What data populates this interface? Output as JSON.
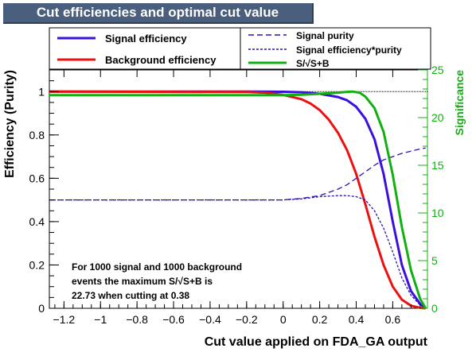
{
  "title": "Cut efficiencies and optimal cut value",
  "chart_data": {
    "type": "line",
    "xlabel": "Cut value applied on FDA_GA output",
    "ylabel": "Efficiency (Purity)",
    "y2label": "Significance",
    "xlim": [
      -1.28,
      0.79
    ],
    "ylim": [
      0,
      1.1
    ],
    "y2lim": [
      0,
      25
    ],
    "x_ticks": [
      -1.2,
      -1,
      -0.8,
      -0.6,
      -0.4,
      -0.2,
      0,
      0.2,
      0.4,
      0.6
    ],
    "x_tick_labels": [
      "−1.2",
      "−1",
      "−0.8",
      "−0.6",
      "−0.4",
      "−0.2",
      "0",
      "0.2",
      "0.4",
      "0.6"
    ],
    "y_ticks": [
      0,
      0.2,
      0.4,
      0.6,
      0.8,
      1
    ],
    "y_tick_labels": [
      "0",
      "0.2",
      "0.4",
      "0.6",
      "0.8",
      "1"
    ],
    "y2_ticks": [
      0,
      5,
      10,
      15,
      20,
      25
    ],
    "y2_tick_labels": [
      "0",
      "5",
      "10",
      "15",
      "20",
      "25"
    ],
    "reference_line_y": 1.0,
    "legend_placement": "top",
    "series": [
      {
        "name": "Signal efficiency",
        "color": "#3a10e0",
        "style": "solid",
        "axis": "left",
        "x": [
          -1.28,
          -0.2,
          0.0,
          0.1,
          0.2,
          0.3,
          0.35,
          0.4,
          0.45,
          0.5,
          0.55,
          0.6,
          0.65,
          0.7,
          0.75,
          0.78
        ],
        "y": [
          1.0,
          1.0,
          0.999,
          0.997,
          0.99,
          0.975,
          0.96,
          0.93,
          0.875,
          0.78,
          0.62,
          0.4,
          0.2,
          0.08,
          0.02,
          0.0
        ]
      },
      {
        "name": "Background efficiency",
        "color": "#ee1010",
        "style": "solid",
        "axis": "left",
        "x": [
          -1.28,
          -0.2,
          -0.1,
          0.0,
          0.1,
          0.15,
          0.2,
          0.25,
          0.3,
          0.35,
          0.4,
          0.45,
          0.5,
          0.55,
          0.6,
          0.65,
          0.7,
          0.75,
          0.78
        ],
        "y": [
          1.0,
          0.998,
          0.995,
          0.985,
          0.965,
          0.945,
          0.915,
          0.87,
          0.81,
          0.73,
          0.62,
          0.48,
          0.33,
          0.2,
          0.1,
          0.04,
          0.012,
          0.002,
          0.0
        ]
      },
      {
        "name": "Signal purity",
        "color": "#2a10b8",
        "style": "dashed",
        "axis": "left",
        "x": [
          -1.28,
          0.0,
          0.1,
          0.2,
          0.25,
          0.3,
          0.35,
          0.4,
          0.45,
          0.5,
          0.55,
          0.6,
          0.65,
          0.7,
          0.75,
          0.78
        ],
        "y": [
          0.5,
          0.5,
          0.507,
          0.52,
          0.535,
          0.55,
          0.57,
          0.6,
          0.63,
          0.66,
          0.685,
          0.7,
          0.715,
          0.725,
          0.735,
          0.74
        ]
      },
      {
        "name": "Signal efficiency*purity",
        "color": "#2a10b8",
        "style": "dotted",
        "axis": "left",
        "x": [
          -1.28,
          0.0,
          0.1,
          0.2,
          0.3,
          0.35,
          0.4,
          0.45,
          0.5,
          0.55,
          0.6,
          0.65,
          0.7,
          0.75,
          0.78
        ],
        "y": [
          0.5,
          0.5,
          0.505,
          0.515,
          0.52,
          0.52,
          0.515,
          0.5,
          0.45,
          0.37,
          0.26,
          0.14,
          0.06,
          0.015,
          0.0
        ]
      },
      {
        "name": "S/√S+B",
        "color": "#10b010",
        "style": "solid",
        "axis": "right",
        "x": [
          -1.28,
          0.0,
          0.1,
          0.2,
          0.3,
          0.35,
          0.38,
          0.42,
          0.45,
          0.5,
          0.55,
          0.6,
          0.65,
          0.7,
          0.75,
          0.78
        ],
        "y": [
          22.35,
          22.36,
          22.4,
          22.5,
          22.62,
          22.7,
          22.73,
          22.6,
          22.2,
          21.0,
          18.5,
          14.0,
          8.5,
          4.0,
          1.0,
          0.0
        ]
      }
    ],
    "annotation": [
      "For 1000 signal and 1000 background",
      "events the maximum S/√S+B is",
      "22.73 when cutting at  0.38"
    ]
  }
}
